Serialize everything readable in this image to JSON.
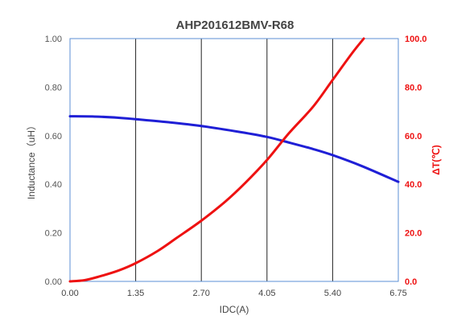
{
  "chart_data": {
    "type": "line",
    "title": "AHP201612BMV-R68",
    "xlabel": "IDC(A)",
    "ylabel_left": "Inductance（uH）",
    "ylabel_right": "ΔT(℃)",
    "xlim": [
      0,
      6.75
    ],
    "ylim_left": [
      0,
      1.0
    ],
    "ylim_right": [
      0,
      100
    ],
    "x_ticks": [
      "0.00",
      "1.35",
      "2.70",
      "4.05",
      "5.40",
      "6.75"
    ],
    "y_left_ticks": [
      "0.00",
      "0.20",
      "0.40",
      "0.60",
      "0.80",
      "1.00"
    ],
    "y_right_ticks": [
      "0.0",
      "20.0",
      "40.0",
      "60.0",
      "80.0",
      "100.0"
    ],
    "grid": "vertical",
    "series": [
      {
        "axis": "left",
        "color": "#1f1fd6",
        "x": [
          0,
          0.5,
          1.0,
          1.35,
          2.0,
          2.7,
          3.5,
          4.05,
          4.5,
          5.0,
          5.4,
          6.0,
          6.75
        ],
        "values": [
          0.68,
          0.679,
          0.674,
          0.668,
          0.656,
          0.64,
          0.615,
          0.595,
          0.572,
          0.545,
          0.52,
          0.475,
          0.41
        ]
      },
      {
        "axis": "right",
        "color": "#ee1111",
        "x": [
          0,
          0.3,
          0.6,
          1.0,
          1.35,
          1.8,
          2.2,
          2.7,
          3.2,
          3.6,
          4.05,
          4.5,
          5.0,
          5.4,
          5.8,
          6.04
        ],
        "values": [
          0,
          0.5,
          2,
          4.5,
          7.5,
          12.5,
          18,
          25,
          33,
          40.5,
          50,
          61,
          72,
          83,
          94,
          100
        ]
      }
    ],
    "colors": {
      "left_axis": "#555555",
      "right_axis": "#ee1111",
      "grid": "#222222",
      "plot_border": "#5b8fd6"
    }
  }
}
